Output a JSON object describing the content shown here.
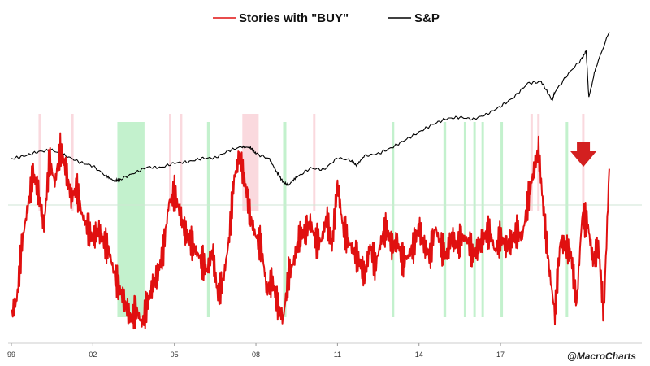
{
  "chart_data": {
    "type": "line",
    "title": "",
    "legend_position": "top-center",
    "grid": false,
    "colors": {
      "buy_series": "#e01010",
      "sp_series": "#000000",
      "green_band": "#b8efc4",
      "pink_band": "#f9d2d8",
      "arrow": "#d32020",
      "reference_line": "#cfe6d4"
    },
    "x_ticks": [
      {
        "label": "99",
        "year": 1999
      },
      {
        "label": "02",
        "year": 2002
      },
      {
        "label": "05",
        "year": 2005
      },
      {
        "label": "08",
        "year": 2008
      },
      {
        "label": "11",
        "year": 2011
      },
      {
        "label": "14",
        "year": 2014
      },
      {
        "label": "17",
        "year": 2017
      }
    ],
    "xlim": [
      1999.0,
      2022.2
    ],
    "series": [
      {
        "name": "Stories with \"BUY\"",
        "color": "#e01010",
        "x": [
          1999.0,
          1999.2,
          1999.4,
          1999.6,
          1999.8,
          2000.0,
          2000.2,
          2000.4,
          2000.6,
          2000.8,
          2001.0,
          2001.2,
          2001.4,
          2001.6,
          2001.8,
          2002.0,
          2002.2,
          2002.4,
          2002.6,
          2002.8,
          2003.0,
          2003.2,
          2003.4,
          2003.6,
          2003.8,
          2004.0,
          2004.2,
          2004.4,
          2004.6,
          2004.8,
          2005.0,
          2005.2,
          2005.4,
          2005.6,
          2005.8,
          2006.0,
          2006.2,
          2006.4,
          2006.6,
          2006.8,
          2007.0,
          2007.2,
          2007.4,
          2007.6,
          2007.8,
          2008.0,
          2008.2,
          2008.4,
          2008.6,
          2008.8,
          2009.0,
          2009.2,
          2009.4,
          2009.6,
          2009.8,
          2010.0,
          2010.2,
          2010.4,
          2010.6,
          2010.8,
          2011.0,
          2011.2,
          2011.4,
          2011.6,
          2011.8,
          2012.0,
          2012.2,
          2012.4,
          2012.6,
          2012.8,
          2013.0,
          2013.2,
          2013.4,
          2013.6,
          2013.8,
          2014.0,
          2014.2,
          2014.4,
          2014.6,
          2014.8,
          2015.0,
          2015.2,
          2015.4,
          2015.6,
          2015.8,
          2016.0,
          2016.2,
          2016.4,
          2016.6,
          2016.8,
          2017.0,
          2017.2,
          2017.4,
          2017.6,
          2017.8,
          2018.0,
          2018.2,
          2018.4,
          2018.6,
          2018.8,
          2019.0,
          2019.2,
          2019.4,
          2019.6,
          2019.8,
          2020.0,
          2020.2,
          2020.4,
          2020.6,
          2020.8,
          2021.0
        ],
        "y": [
          8,
          14,
          38,
          52,
          66,
          58,
          44,
          72,
          62,
          76,
          68,
          56,
          60,
          49,
          44,
          39,
          43,
          38,
          34,
          24,
          18,
          12,
          6,
          10,
          4,
          12,
          20,
          25,
          35,
          54,
          58,
          50,
          42,
          38,
          34,
          30,
          26,
          34,
          16,
          22,
          38,
          64,
          74,
          62,
          48,
          40,
          36,
          18,
          22,
          12,
          6,
          24,
          30,
          40,
          42,
          46,
          38,
          38,
          48,
          36,
          62,
          44,
          38,
          34,
          30,
          24,
          36,
          28,
          38,
          44,
          36,
          38,
          30,
          32,
          36,
          44,
          36,
          32,
          44,
          36,
          32,
          40,
          36,
          40,
          38,
          32,
          36,
          40,
          42,
          34,
          40,
          36,
          38,
          42,
          40,
          54,
          66,
          76,
          48,
          26,
          8,
          38,
          36,
          32,
          12,
          48,
          46,
          30,
          36,
          8,
          68
        ],
        "min_observed": 0,
        "max_observed": 84
      },
      {
        "name": "S&P",
        "color": "#000000",
        "x": [
          1999.0,
          1999.5,
          2000.0,
          2000.5,
          2001.0,
          2001.5,
          2002.0,
          2002.5,
          2002.8,
          2003.0,
          2003.5,
          2004.0,
          2004.5,
          2005.0,
          2005.5,
          2006.0,
          2006.5,
          2007.0,
          2007.5,
          2007.8,
          2008.0,
          2008.5,
          2008.8,
          2009.0,
          2009.2,
          2009.5,
          2010.0,
          2010.5,
          2011.0,
          2011.5,
          2011.7,
          2012.0,
          2012.5,
          2013.0,
          2013.5,
          2014.0,
          2014.5,
          2015.0,
          2015.5,
          2016.0,
          2016.5,
          2017.0,
          2017.5,
          2018.0,
          2018.5,
          2018.9,
          2019.0,
          2019.5,
          2020.0,
          2020.15,
          2020.25,
          2020.5,
          2021.0
        ],
        "y": [
          1280,
          1340,
          1420,
          1450,
          1340,
          1220,
          1140,
          940,
          850,
          880,
          1000,
          1120,
          1110,
          1200,
          1220,
          1290,
          1300,
          1440,
          1520,
          1500,
          1380,
          1280,
          1000,
          830,
          760,
          920,
          1100,
          1070,
          1300,
          1250,
          1150,
          1340,
          1380,
          1500,
          1650,
          1800,
          1950,
          2060,
          2090,
          2050,
          2150,
          2300,
          2480,
          2750,
          2780,
          2420,
          2580,
          2940,
          3230,
          3380,
          2470,
          3050,
          3750
        ]
      }
    ],
    "green_bands": [
      [
        2002.9,
        2003.9
      ],
      [
        2006.2,
        2006.3
      ],
      [
        2009.0,
        2009.12
      ],
      [
        2013.0,
        2013.08
      ],
      [
        2014.9,
        2015.0
      ],
      [
        2015.65,
        2015.72
      ],
      [
        2016.0,
        2016.05
      ],
      [
        2016.3,
        2016.35
      ],
      [
        2017.0,
        2017.05
      ],
      [
        2019.4,
        2019.45
      ]
    ],
    "pink_bands": [
      [
        2000.0,
        2000.07
      ],
      [
        2001.2,
        2001.27
      ],
      [
        2004.8,
        2004.86
      ],
      [
        2005.2,
        2005.26
      ],
      [
        2007.5,
        2008.1
      ],
      [
        2010.1,
        2010.17
      ],
      [
        2018.1,
        2018.18
      ],
      [
        2018.35,
        2018.42
      ],
      [
        2020.0,
        2020.06
      ]
    ],
    "annotation": {
      "type": "down-arrow",
      "near_year": 2020.05
    }
  },
  "legend": {
    "buy_label": "Stories with \"BUY\"",
    "sp_label": "S&P"
  },
  "credit": "@MacroCharts"
}
